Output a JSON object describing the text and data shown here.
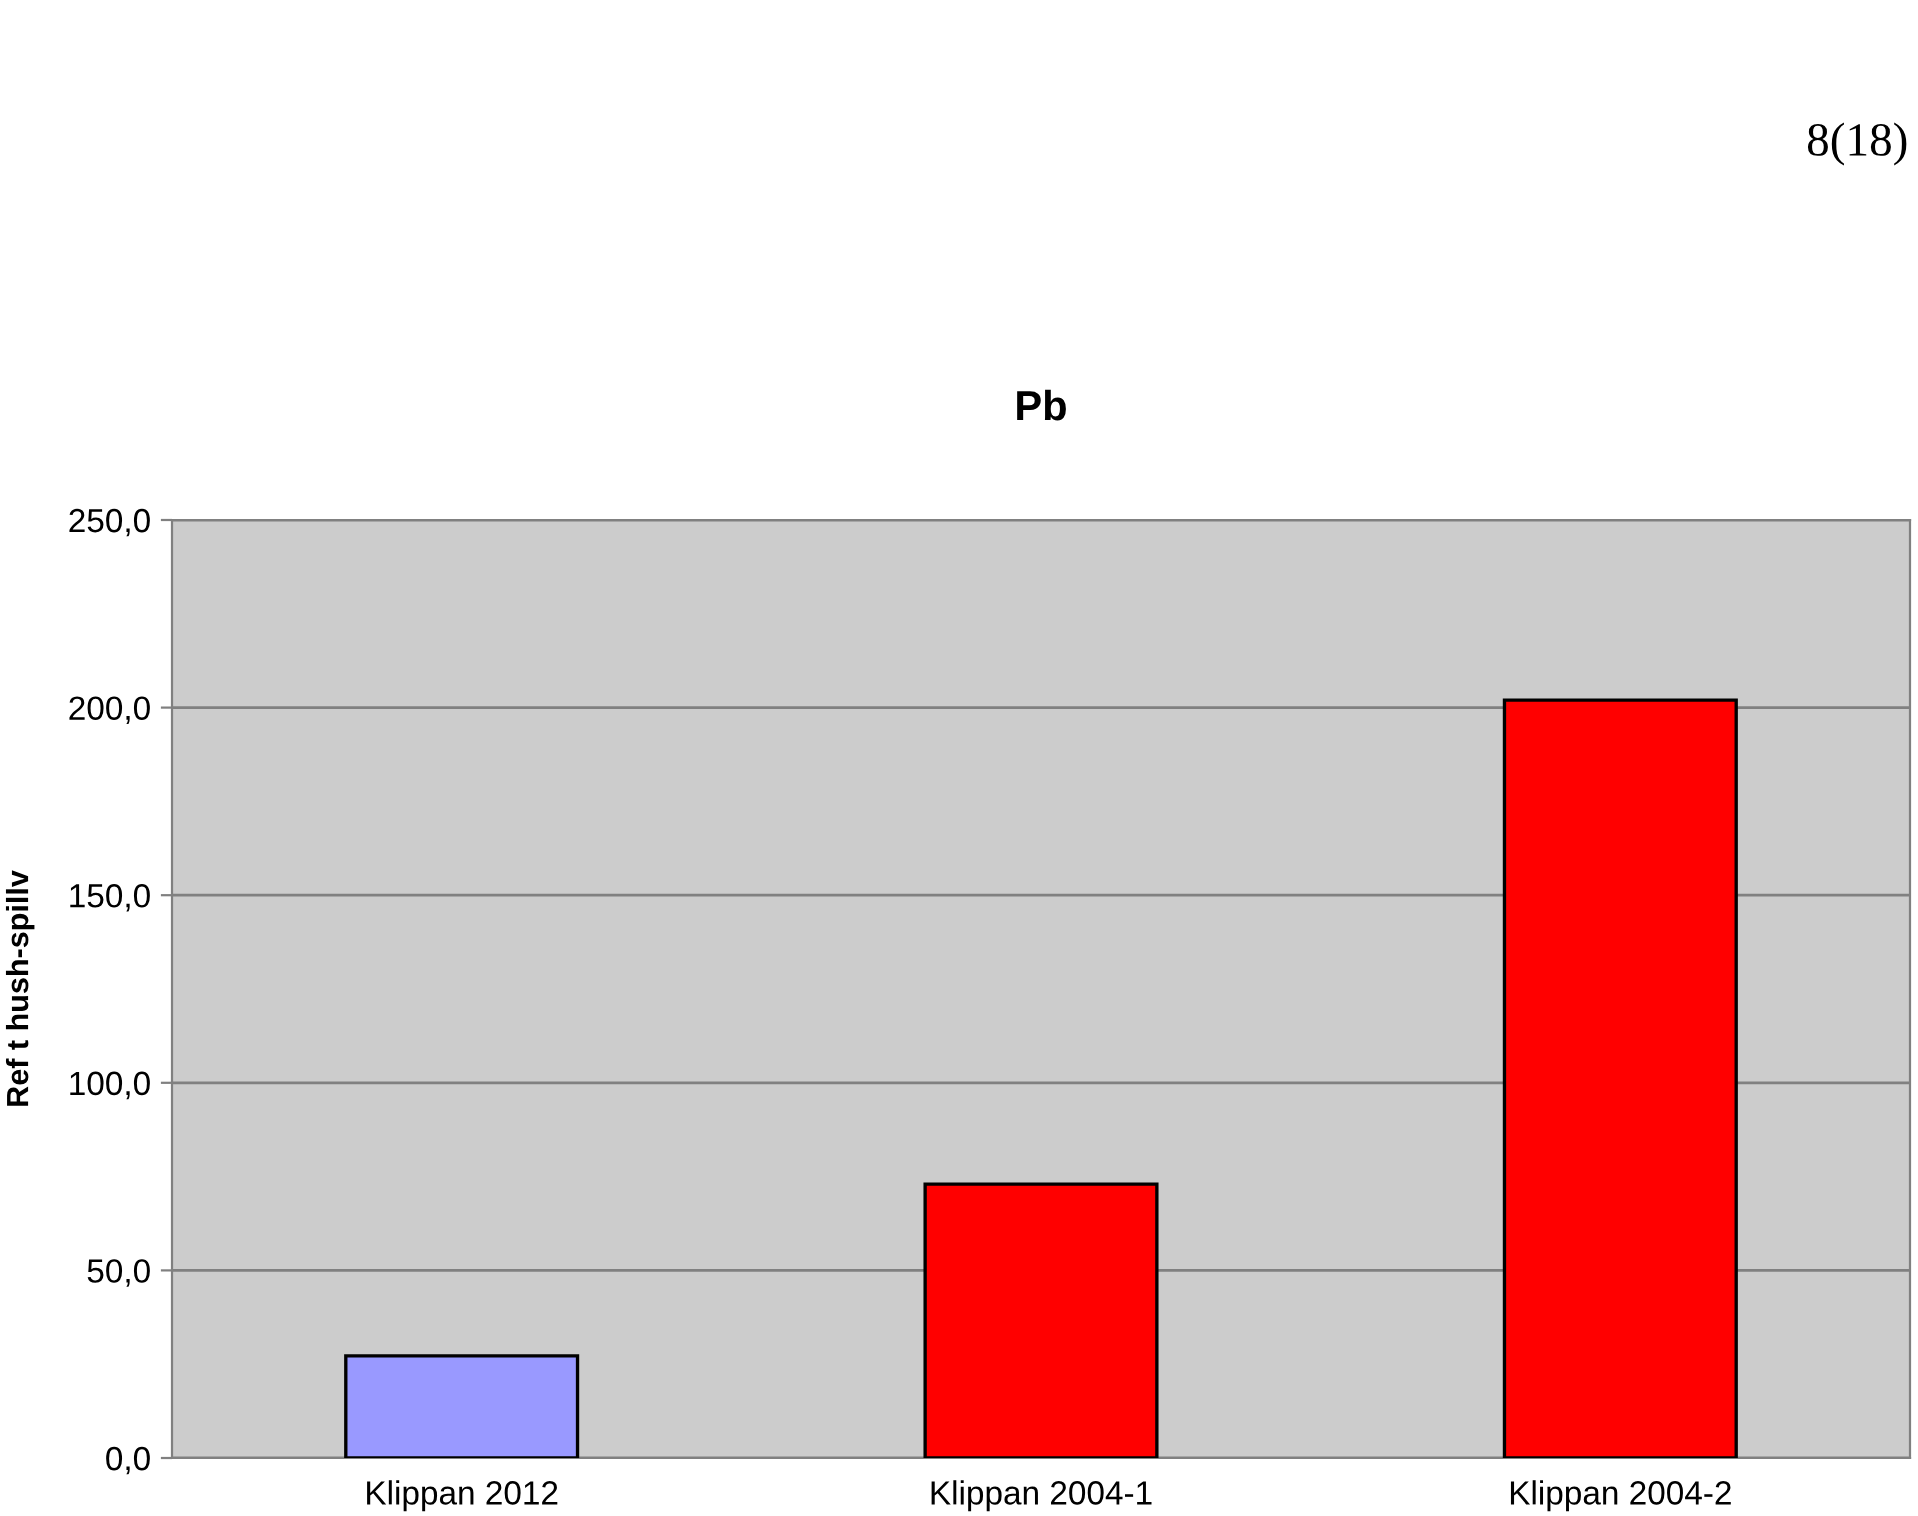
{
  "chart_data": {
    "type": "bar",
    "title": "Pb",
    "ylabel": "Ref t hush-spillv",
    "categories": [
      "Klippan 2012",
      "Klippan 2004-1",
      "Klippan 2004-2"
    ],
    "values": [
      27.2,
      73,
      202
    ],
    "colors": [
      "#9999ff",
      "#ff0000",
      "#ff0000"
    ],
    "ylim": [
      0,
      250
    ],
    "yticks": [
      {
        "value": 0,
        "label": "0,0"
      },
      {
        "value": 50,
        "label": "50,0"
      },
      {
        "value": 100,
        "label": "100,0"
      },
      {
        "value": 150,
        "label": "150,0"
      },
      {
        "value": 200,
        "label": "200,0"
      },
      {
        "value": 250,
        "label": "250,0"
      }
    ],
    "grid": "y",
    "annotations": [
      "8(18)"
    ]
  }
}
